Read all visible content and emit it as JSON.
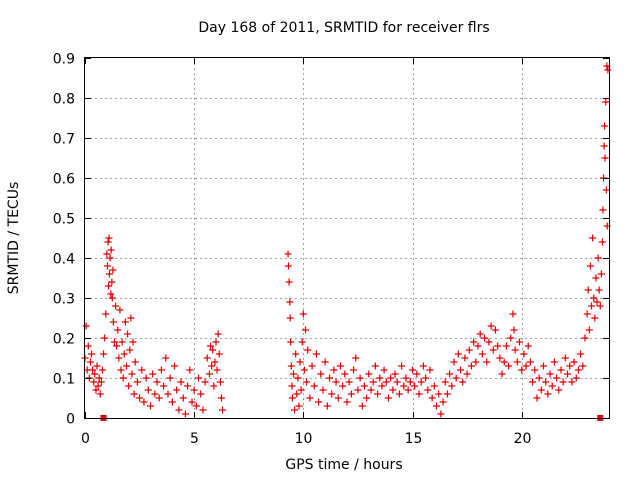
{
  "chart_data": {
    "type": "scatter",
    "title": "Day 168 of 2011, SRMTID for receiver flrs",
    "xlabel": "GPS time / hours",
    "ylabel": "SRMTID / TECUs",
    "xlim": [
      0,
      24
    ],
    "ylim": [
      0,
      0.9
    ],
    "xticks": [
      0,
      5,
      10,
      15,
      20
    ],
    "xtick_labels": [
      "0",
      "5",
      "10",
      "15",
      "20"
    ],
    "yticks": [
      0,
      0.1,
      0.2,
      0.3,
      0.4,
      0.5,
      0.6,
      0.7,
      0.8,
      0.9
    ],
    "ytick_labels": [
      "0",
      "0.1",
      "0.2",
      "0.3",
      "0.4",
      "0.5",
      "0.6",
      "0.7",
      "0.8",
      "0.9"
    ],
    "grid": true,
    "marker": "+",
    "color": "#e00000",
    "data_gap_hours": [
      6.4,
      9.2
    ],
    "zero_value_markers": [
      0.85,
      23.6
    ],
    "series": [
      {
        "name": "SRMTID",
        "points": [
          [
            0.0,
            0.15
          ],
          [
            0.05,
            0.23
          ],
          [
            0.1,
            0.12
          ],
          [
            0.15,
            0.18
          ],
          [
            0.2,
            0.1
          ],
          [
            0.25,
            0.14
          ],
          [
            0.3,
            0.16
          ],
          [
            0.35,
            0.12
          ],
          [
            0.4,
            0.09
          ],
          [
            0.45,
            0.11
          ],
          [
            0.5,
            0.07
          ],
          [
            0.55,
            0.13
          ],
          [
            0.6,
            0.08
          ],
          [
            0.65,
            0.1
          ],
          [
            0.7,
            0.06
          ],
          [
            0.75,
            0.09
          ],
          [
            0.8,
            0.12
          ],
          [
            0.85,
            0.16
          ],
          [
            0.9,
            0.2
          ],
          [
            0.95,
            0.26
          ],
          [
            1.0,
            0.41
          ],
          [
            1.03,
            0.38
          ],
          [
            1.06,
            0.44
          ],
          [
            1.08,
            0.33
          ],
          [
            1.1,
            0.45
          ],
          [
            1.12,
            0.36
          ],
          [
            1.15,
            0.4
          ],
          [
            1.18,
            0.31
          ],
          [
            1.2,
            0.42
          ],
          [
            1.23,
            0.34
          ],
          [
            1.25,
            0.3
          ],
          [
            1.28,
            0.37
          ],
          [
            1.3,
            0.24
          ],
          [
            1.35,
            0.19
          ],
          [
            1.4,
            0.28
          ],
          [
            1.45,
            0.18
          ],
          [
            1.5,
            0.22
          ],
          [
            1.55,
            0.15
          ],
          [
            1.6,
            0.27
          ],
          [
            1.65,
            0.12
          ],
          [
            1.7,
            0.19
          ],
          [
            1.75,
            0.1
          ],
          [
            1.8,
            0.16
          ],
          [
            1.85,
            0.24
          ],
          [
            1.9,
            0.13
          ],
          [
            1.95,
            0.21
          ],
          [
            2.0,
            0.08
          ],
          [
            2.05,
            0.17
          ],
          [
            2.1,
            0.25
          ],
          [
            2.15,
            0.11
          ],
          [
            2.2,
            0.19
          ],
          [
            2.25,
            0.06
          ],
          [
            2.3,
            0.14
          ],
          [
            2.4,
            0.09
          ],
          [
            2.5,
            0.05
          ],
          [
            2.6,
            0.12
          ],
          [
            2.7,
            0.04
          ],
          [
            2.8,
            0.1
          ],
          [
            2.9,
            0.07
          ],
          [
            3.0,
            0.03
          ],
          [
            3.1,
            0.11
          ],
          [
            3.2,
            0.06
          ],
          [
            3.3,
            0.09
          ],
          [
            3.4,
            0.05
          ],
          [
            3.5,
            0.12
          ],
          [
            3.6,
            0.08
          ],
          [
            3.7,
            0.15
          ],
          [
            3.8,
            0.06
          ],
          [
            3.9,
            0.1
          ],
          [
            4.0,
            0.04
          ],
          [
            4.1,
            0.13
          ],
          [
            4.2,
            0.07
          ],
          [
            4.3,
            0.02
          ],
          [
            4.4,
            0.09
          ],
          [
            4.5,
            0.05
          ],
          [
            4.6,
            0.01
          ],
          [
            4.7,
            0.08
          ],
          [
            4.8,
            0.12
          ],
          [
            4.9,
            0.04
          ],
          [
            5.0,
            0.07
          ],
          [
            5.1,
            0.03
          ],
          [
            5.2,
            0.1
          ],
          [
            5.3,
            0.06
          ],
          [
            5.4,
            0.02
          ],
          [
            5.5,
            0.09
          ],
          [
            5.6,
            0.15
          ],
          [
            5.7,
            0.11
          ],
          [
            5.75,
            0.18
          ],
          [
            5.8,
            0.13
          ],
          [
            5.85,
            0.17
          ],
          [
            5.9,
            0.08
          ],
          [
            5.95,
            0.14
          ],
          [
            6.0,
            0.19
          ],
          [
            6.05,
            0.12
          ],
          [
            6.1,
            0.21
          ],
          [
            6.15,
            0.16
          ],
          [
            6.2,
            0.09
          ],
          [
            6.25,
            0.05
          ],
          [
            6.3,
            0.02
          ],
          [
            9.3,
            0.41
          ],
          [
            9.32,
            0.38
          ],
          [
            9.35,
            0.34
          ],
          [
            9.38,
            0.29
          ],
          [
            9.4,
            0.25
          ],
          [
            9.42,
            0.19
          ],
          [
            9.45,
            0.13
          ],
          [
            9.48,
            0.08
          ],
          [
            9.5,
            0.05
          ],
          [
            9.55,
            0.11
          ],
          [
            9.6,
            0.02
          ],
          [
            9.65,
            0.16
          ],
          [
            9.7,
            0.06
          ],
          [
            9.75,
            0.1
          ],
          [
            9.8,
            0.03
          ],
          [
            9.85,
            0.14
          ],
          [
            9.9,
            0.07
          ],
          [
            9.95,
            0.19
          ],
          [
            10.0,
            0.26
          ],
          [
            10.05,
            0.12
          ],
          [
            10.1,
            0.22
          ],
          [
            10.15,
            0.09
          ],
          [
            10.2,
            0.17
          ],
          [
            10.3,
            0.05
          ],
          [
            10.4,
            0.13
          ],
          [
            10.5,
            0.08
          ],
          [
            10.6,
            0.16
          ],
          [
            10.7,
            0.04
          ],
          [
            10.8,
            0.11
          ],
          [
            10.9,
            0.07
          ],
          [
            11.0,
            0.14
          ],
          [
            11.1,
            0.03
          ],
          [
            11.2,
            0.1
          ],
          [
            11.3,
            0.06
          ],
          [
            11.4,
            0.12
          ],
          [
            11.5,
            0.09
          ],
          [
            11.6,
            0.05
          ],
          [
            11.7,
            0.13
          ],
          [
            11.8,
            0.08
          ],
          [
            11.9,
            0.11
          ],
          [
            12.0,
            0.04
          ],
          [
            12.1,
            0.09
          ],
          [
            12.2,
            0.06
          ],
          [
            12.3,
            0.12
          ],
          [
            12.4,
            0.15
          ],
          [
            12.5,
            0.07
          ],
          [
            12.6,
            0.1
          ],
          [
            12.7,
            0.03
          ],
          [
            12.8,
            0.08
          ],
          [
            12.9,
            0.05
          ],
          [
            13.0,
            0.11
          ],
          [
            13.1,
            0.07
          ],
          [
            13.2,
            0.09
          ],
          [
            13.3,
            0.13
          ],
          [
            13.4,
            0.06
          ],
          [
            13.5,
            0.1
          ],
          [
            13.6,
            0.08
          ],
          [
            13.7,
            0.12
          ],
          [
            13.8,
            0.09
          ],
          [
            13.9,
            0.05
          ],
          [
            14.0,
            0.1
          ],
          [
            14.1,
            0.07
          ],
          [
            14.2,
            0.11
          ],
          [
            14.3,
            0.09
          ],
          [
            14.4,
            0.06
          ],
          [
            14.5,
            0.13
          ],
          [
            14.6,
            0.08
          ],
          [
            14.7,
            0.1
          ],
          [
            14.8,
            0.07
          ],
          [
            14.9,
            0.09
          ],
          [
            15.0,
            0.12
          ],
          [
            15.1,
            0.08
          ],
          [
            15.2,
            0.11
          ],
          [
            15.3,
            0.06
          ],
          [
            15.4,
            0.09
          ],
          [
            15.5,
            0.13
          ],
          [
            15.6,
            0.1
          ],
          [
            15.7,
            0.07
          ],
          [
            15.8,
            0.12
          ],
          [
            15.9,
            0.05
          ],
          [
            16.0,
            0.08
          ],
          [
            16.1,
            0.03
          ],
          [
            16.2,
            0.06
          ],
          [
            16.3,
            0.01
          ],
          [
            16.4,
            0.04
          ],
          [
            16.5,
            0.09
          ],
          [
            16.6,
            0.06
          ],
          [
            16.7,
            0.11
          ],
          [
            16.8,
            0.08
          ],
          [
            16.9,
            0.14
          ],
          [
            17.0,
            0.1
          ],
          [
            17.1,
            0.16
          ],
          [
            17.2,
            0.12
          ],
          [
            17.3,
            0.09
          ],
          [
            17.4,
            0.15
          ],
          [
            17.5,
            0.11
          ],
          [
            17.6,
            0.17
          ],
          [
            17.7,
            0.13
          ],
          [
            17.8,
            0.19
          ],
          [
            17.9,
            0.14
          ],
          [
            18.0,
            0.18
          ],
          [
            18.1,
            0.21
          ],
          [
            18.2,
            0.16
          ],
          [
            18.3,
            0.2
          ],
          [
            18.4,
            0.14
          ],
          [
            18.5,
            0.19
          ],
          [
            18.6,
            0.23
          ],
          [
            18.7,
            0.17
          ],
          [
            18.8,
            0.22
          ],
          [
            18.9,
            0.18
          ],
          [
            19.0,
            0.15
          ],
          [
            19.1,
            0.11
          ],
          [
            19.2,
            0.14
          ],
          [
            19.3,
            0.18
          ],
          [
            19.4,
            0.13
          ],
          [
            19.5,
            0.2
          ],
          [
            19.6,
            0.26
          ],
          [
            19.65,
            0.22
          ],
          [
            19.7,
            0.17
          ],
          [
            19.8,
            0.14
          ],
          [
            19.9,
            0.19
          ],
          [
            20.0,
            0.12
          ],
          [
            20.1,
            0.16
          ],
          [
            20.2,
            0.13
          ],
          [
            20.3,
            0.18
          ],
          [
            20.4,
            0.14
          ],
          [
            20.5,
            0.09
          ],
          [
            20.6,
            0.12
          ],
          [
            20.7,
            0.05
          ],
          [
            20.8,
            0.1
          ],
          [
            20.9,
            0.07
          ],
          [
            21.0,
            0.13
          ],
          [
            21.1,
            0.09
          ],
          [
            21.2,
            0.06
          ],
          [
            21.3,
            0.11
          ],
          [
            21.4,
            0.08
          ],
          [
            21.5,
            0.14
          ],
          [
            21.6,
            0.1
          ],
          [
            21.7,
            0.07
          ],
          [
            21.8,
            0.12
          ],
          [
            21.9,
            0.09
          ],
          [
            22.0,
            0.15
          ],
          [
            22.1,
            0.11
          ],
          [
            22.2,
            0.13
          ],
          [
            22.3,
            0.09
          ],
          [
            22.4,
            0.14
          ],
          [
            22.5,
            0.1
          ],
          [
            22.6,
            0.12
          ],
          [
            22.7,
            0.16
          ],
          [
            22.8,
            0.13
          ],
          [
            22.9,
            0.2
          ],
          [
            23.0,
            0.26
          ],
          [
            23.05,
            0.32
          ],
          [
            23.1,
            0.22
          ],
          [
            23.15,
            0.38
          ],
          [
            23.2,
            0.28
          ],
          [
            23.25,
            0.45
          ],
          [
            23.3,
            0.3
          ],
          [
            23.35,
            0.25
          ],
          [
            23.4,
            0.35
          ],
          [
            23.45,
            0.29
          ],
          [
            23.5,
            0.4
          ],
          [
            23.55,
            0.32
          ],
          [
            23.6,
            0.28
          ],
          [
            23.65,
            0.36
          ],
          [
            23.7,
            0.44
          ],
          [
            23.72,
            0.52
          ],
          [
            23.75,
            0.6
          ],
          [
            23.78,
            0.68
          ],
          [
            23.8,
            0.73
          ],
          [
            23.82,
            0.65
          ],
          [
            23.85,
            0.79
          ],
          [
            23.88,
            0.57
          ],
          [
            23.9,
            0.88
          ],
          [
            23.92,
            0.48
          ],
          [
            23.95,
            0.87
          ]
        ]
      }
    ]
  }
}
